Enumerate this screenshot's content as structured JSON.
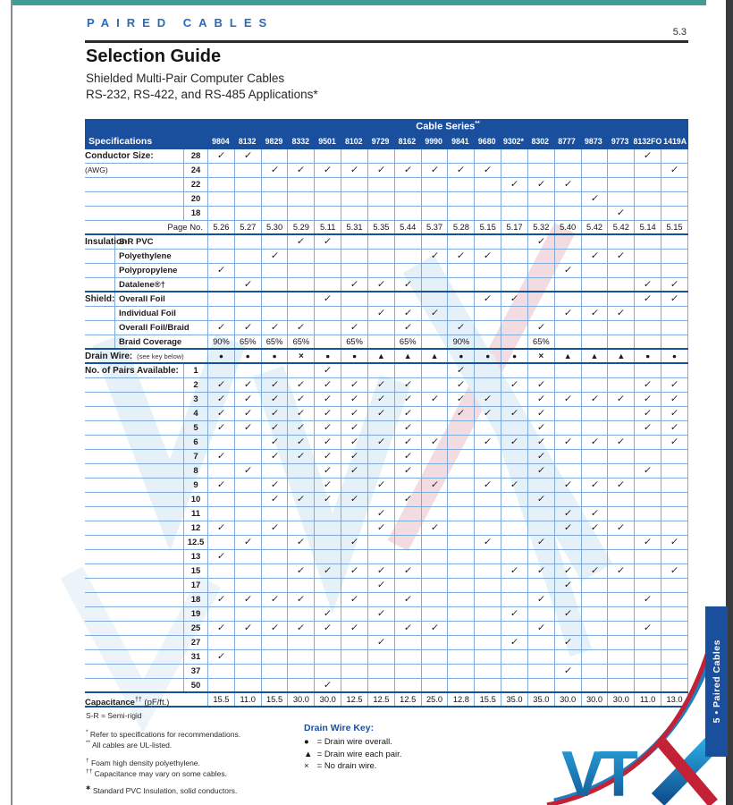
{
  "page": {
    "header_label": "PAIRED CABLES",
    "page_number": "5.3",
    "title": "Selection Guide",
    "subtitle1": "Shielded Multi-Pair Computer Cables",
    "subtitle2": "RS-232, RS-422, and RS-485 Applications*",
    "sidebar_tab": "5 • Paired Cables",
    "logo_text": "VTX"
  },
  "colors": {
    "table_blue": "#1a4f9e",
    "grid_blue": "#7fa9d6",
    "header_text_blue": "#2a6cb5",
    "teal_bar": "#3f9d95",
    "logo_blue": "#1a7fc4",
    "logo_red": "#c32236"
  },
  "table": {
    "series_header": "Cable Series",
    "series_header_marker": "**",
    "spec_header": "Specifications",
    "columns": [
      "9804",
      "8132",
      "9829",
      "8332",
      "9501",
      "8102",
      "9729",
      "8162",
      "9990",
      "9841",
      "9680",
      "9302*",
      "8302",
      "8777",
      "9873",
      "9773",
      "8132FO",
      "1419A"
    ],
    "sections": [
      {
        "category": "Conductor Size:",
        "category2": "(AWG)",
        "sub": "num",
        "rows": [
          {
            "label": "28",
            "checks": [
              1,
              2,
              17
            ]
          },
          {
            "label": "24",
            "checks": [
              3,
              4,
              5,
              6,
              7,
              8,
              9,
              10,
              11,
              18
            ]
          },
          {
            "label": "22",
            "checks": [
              12,
              13,
              14
            ]
          },
          {
            "label": "20",
            "checks": [
              15
            ]
          },
          {
            "label": "18",
            "checks": [
              16
            ]
          }
        ]
      },
      {
        "category": "",
        "sub": "pageno",
        "rows": [
          {
            "label": "Page No.",
            "hb": 1,
            "values": [
              "5.26",
              "5.27",
              "5.30",
              "5.29",
              "5.11",
              "5.31",
              "5.35",
              "5.44",
              "5.37",
              "5.28",
              "5.15",
              "5.17",
              "5.32",
              "5.40",
              "5.42",
              "5.42",
              "5.14",
              "5.15"
            ]
          }
        ]
      },
      {
        "category": "Insulation:",
        "sub": "text",
        "rows": [
          {
            "label": "S-R PVC",
            "checks": [
              4,
              5,
              13
            ]
          },
          {
            "label": "Polyethylene",
            "checks": [
              3,
              9,
              10,
              11,
              15,
              16
            ]
          },
          {
            "label": "Polypropylene",
            "checks": [
              1,
              14
            ]
          },
          {
            "label": "Datalene®†",
            "hb": 1,
            "checks": [
              2,
              6,
              7,
              8,
              17,
              18
            ]
          }
        ]
      },
      {
        "category": "Shield:",
        "sub": "text",
        "rows": [
          {
            "label": "Overall Foil",
            "checks": [
              5,
              11,
              12,
              17,
              18
            ]
          },
          {
            "label": "Individual Foil",
            "checks": [
              7,
              8,
              9,
              14,
              15,
              16
            ]
          },
          {
            "label": "Overall Foil/Braid",
            "checks": [
              1,
              2,
              3,
              4,
              6,
              8,
              10,
              13
            ]
          },
          {
            "label": "Braid Coverage",
            "hb": 1,
            "values": [
              "90%",
              "65%",
              "65%",
              "65%",
              "",
              "65%",
              "",
              "65%",
              "",
              "90%",
              "",
              "",
              "65%",
              "",
              "",
              "",
              "",
              ""
            ]
          }
        ]
      },
      {
        "category": "Drain Wire:",
        "category_note": "(see key below)",
        "sub": "full",
        "rows": [
          {
            "label": "",
            "hb": 1,
            "symbols": [
              "●",
              "●",
              "●",
              "×",
              "●",
              "●",
              "▲",
              "▲",
              "▲",
              "●",
              "●",
              "●",
              "×",
              "▲",
              "▲",
              "▲",
              "●",
              "●"
            ]
          }
        ]
      },
      {
        "category": "No. of Pairs Available:",
        "sub": "num",
        "rows": [
          {
            "label": "1",
            "checks": [
              5,
              10
            ]
          },
          {
            "label": "2",
            "checks": [
              1,
              2,
              3,
              4,
              5,
              6,
              7,
              8,
              10,
              12,
              13,
              17,
              18
            ]
          },
          {
            "label": "3",
            "checks": [
              1,
              2,
              3,
              4,
              5,
              6,
              7,
              8,
              9,
              10,
              11,
              13,
              14,
              15,
              16,
              17,
              18
            ]
          },
          {
            "label": "4",
            "checks": [
              1,
              2,
              3,
              4,
              5,
              6,
              7,
              8,
              10,
              11,
              12,
              13,
              17,
              18
            ]
          },
          {
            "label": "5",
            "checks": [
              1,
              2,
              3,
              4,
              5,
              6,
              8,
              13,
              17,
              18
            ]
          },
          {
            "label": "6",
            "checks": [
              3,
              4,
              5,
              6,
              7,
              8,
              9,
              11,
              12,
              13,
              14,
              15,
              16,
              18
            ]
          },
          {
            "label": "7",
            "checks": [
              1,
              3,
              4,
              5,
              6,
              8,
              13
            ]
          },
          {
            "label": "8",
            "checks": [
              2,
              5,
              6,
              8,
              13,
              17
            ]
          },
          {
            "label": "9",
            "checks": [
              1,
              3,
              5,
              7,
              9,
              11,
              12,
              14,
              15,
              16
            ]
          },
          {
            "label": "10",
            "checks": [
              3,
              4,
              5,
              6,
              8,
              13
            ]
          },
          {
            "label": "11",
            "checks": [
              7,
              14,
              15
            ]
          },
          {
            "label": "12",
            "checks": [
              1,
              3,
              7,
              9,
              14,
              15,
              16
            ]
          },
          {
            "label": "12.5",
            "checks": [
              2,
              4,
              6,
              11,
              13,
              17,
              18
            ]
          },
          {
            "label": "13",
            "checks": [
              1
            ]
          },
          {
            "label": "15",
            "checks": [
              4,
              5,
              6,
              7,
              8,
              12,
              13,
              14,
              15,
              16,
              18
            ]
          },
          {
            "label": "17",
            "checks": [
              7,
              14
            ]
          },
          {
            "label": "18",
            "checks": [
              1,
              2,
              3,
              4,
              6,
              8,
              13,
              17
            ]
          },
          {
            "label": "19",
            "checks": [
              5,
              7,
              12,
              14
            ]
          },
          {
            "label": "25",
            "checks": [
              1,
              2,
              3,
              4,
              5,
              6,
              8,
              9,
              13,
              17
            ]
          },
          {
            "label": "27",
            "checks": [
              7,
              12,
              14
            ]
          },
          {
            "label": "31",
            "checks": [
              1
            ]
          },
          {
            "label": "37",
            "checks": [
              14
            ]
          },
          {
            "label": "50",
            "hb": 1,
            "checks": [
              5
            ]
          }
        ]
      },
      {
        "category": "",
        "sub": "capfull",
        "rows": [
          {
            "label": "Capacitance",
            "label_marker": "††",
            "label_unit": " (pF/ft.)",
            "hb": 1,
            "values": [
              "15.5",
              "11.0",
              "15.5",
              "30.0",
              "30.0",
              "12.5",
              "12.5",
              "12.5",
              "25.0",
              "12.8",
              "15.5",
              "35.0",
              "35.0",
              "30.0",
              "30.0",
              "30.0",
              "11.0",
              "13.0"
            ]
          }
        ]
      }
    ]
  },
  "footnotes": {
    "sr_note": "S-R = Semi-rigid",
    "groups": [
      [
        {
          "m": "*",
          "t": "Refer to specifications for recommendations."
        },
        {
          "m": "**",
          "t": "All cables are UL-listed."
        }
      ],
      [
        {
          "m": "†",
          "t": "Foam high density polyethylene."
        },
        {
          "m": "††",
          "t": "Capacitance may vary on some cables."
        }
      ],
      [
        {
          "m": "✱",
          "t": "Standard PVC Insulation, solid conductors."
        }
      ]
    ]
  },
  "drain_key": {
    "title": "Drain Wire Key:",
    "items": [
      {
        "sym": "●",
        "text": "= Drain wire overall."
      },
      {
        "sym": "▲",
        "text": "= Drain wire each pair."
      },
      {
        "sym": "×",
        "text": "= No drain wire."
      }
    ]
  }
}
